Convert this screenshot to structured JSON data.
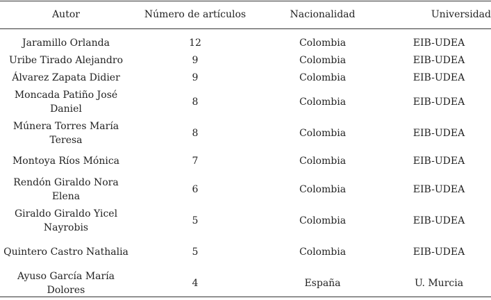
{
  "table": {
    "headers": {
      "autor": "Autor",
      "numero": "Número de artículos",
      "nacionalidad": "Nacionalidad",
      "universidad": "Universidad"
    },
    "rows": [
      {
        "autor": "Jaramillo Orlanda",
        "numero": "12",
        "nacionalidad": "Colombia",
        "universidad": "EIB-UDEA"
      },
      {
        "autor": "Uribe Tirado Alejandro",
        "numero": "9",
        "nacionalidad": "Colombia",
        "universidad": "EIB-UDEA"
      },
      {
        "autor": "Álvarez Zapata Didier",
        "numero": "9",
        "nacionalidad": "Colombia",
        "universidad": "EIB-UDEA"
      },
      {
        "autor": "Moncada Patiño José Daniel",
        "numero": "8",
        "nacionalidad": "Colombia",
        "universidad": "EIB-UDEA"
      },
      {
        "autor": "Múnera Torres María Teresa",
        "numero": "8",
        "nacionalidad": "Colombia",
        "universidad": "EIB-UDEA"
      },
      {
        "autor": "Montoya Ríos Mónica",
        "numero": "7",
        "nacionalidad": "Colombia",
        "universidad": "EIB-UDEA"
      },
      {
        "autor": "Rendón Giraldo Nora Elena",
        "numero": "6",
        "nacionalidad": "Colombia",
        "universidad": "EIB-UDEA"
      },
      {
        "autor": "Giraldo Giraldo Yicel Nayrobis",
        "numero": "5",
        "nacionalidad": "Colombia",
        "universidad": "EIB-UDEA"
      },
      {
        "autor": "Quintero Castro Nathalia",
        "numero": "5",
        "nacionalidad": "Colombia",
        "universidad": "EIB-UDEA"
      },
      {
        "autor": "Ayuso García María Dolores",
        "numero": "4",
        "nacionalidad": "España",
        "universidad": "U. Murcia"
      }
    ]
  }
}
